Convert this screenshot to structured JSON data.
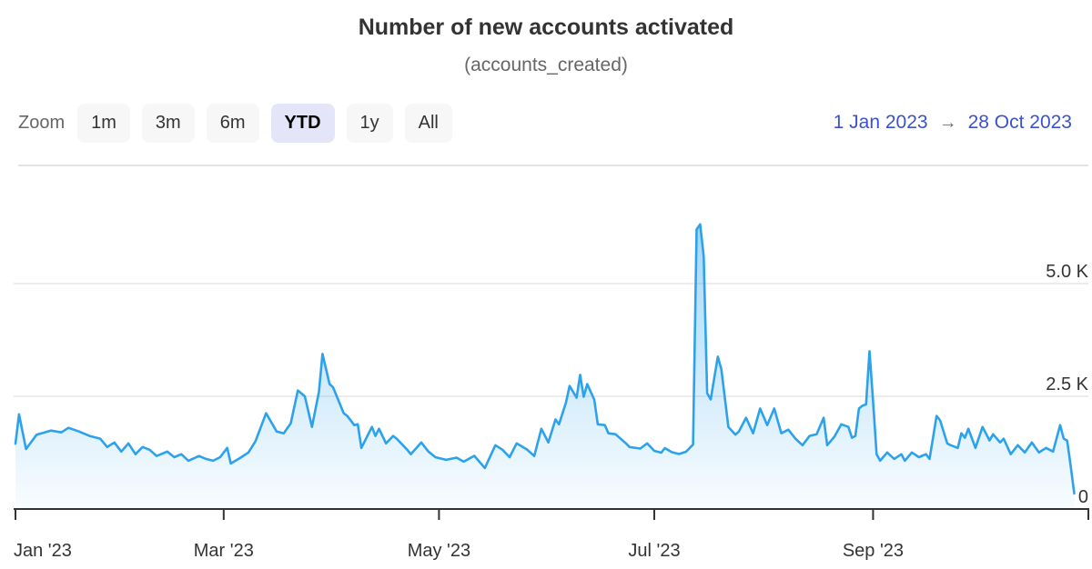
{
  "header": {
    "title": "Number of new accounts activated",
    "subtitle": "(accounts_created)"
  },
  "toolbar": {
    "zoom_label": "Zoom",
    "buttons": [
      {
        "label": "1m",
        "selected": false
      },
      {
        "label": "3m",
        "selected": false
      },
      {
        "label": "6m",
        "selected": false
      },
      {
        "label": "YTD",
        "selected": true
      },
      {
        "label": "1y",
        "selected": false
      },
      {
        "label": "All",
        "selected": false
      }
    ],
    "range": {
      "from": "1 Jan 2023",
      "arrow": "→",
      "to": "28 Oct 2023"
    }
  },
  "chart_data": {
    "type": "area",
    "title": "Number of new accounts activated",
    "subtitle": "(accounts_created)",
    "xlabel": "",
    "ylabel": "",
    "x_unit": "days since 1 Jan 2023",
    "x_range_days": [
      0,
      304
    ],
    "ylim": [
      0,
      7500
    ],
    "grid": true,
    "legend": false,
    "y_ticks": [
      {
        "value": 0,
        "label": "0"
      },
      {
        "value": 2500,
        "label": "2.5 K"
      },
      {
        "value": 5000,
        "label": "5.0 K"
      }
    ],
    "x_ticks": [
      {
        "day": 0,
        "label": "Jan '23"
      },
      {
        "day": 59,
        "label": "Mar '23"
      },
      {
        "day": 120,
        "label": "May '23"
      },
      {
        "day": 181,
        "label": "Jul '23"
      },
      {
        "day": 243,
        "label": "Sep '23"
      },
      {
        "day": 304,
        "label": ""
      }
    ],
    "colors": {
      "line": "#2da2ec",
      "fill_top": "rgba(45,162,236,0.5)",
      "fill_bottom": "rgba(45,162,236,0.03)",
      "axis": "#333333",
      "grid": "#e6e6e6",
      "tick_label": "#333333"
    },
    "series": [
      {
        "name": "accounts_created",
        "points": [
          [
            0,
            1450
          ],
          [
            1,
            2100
          ],
          [
            3,
            1330
          ],
          [
            6,
            1650
          ],
          [
            10,
            1740
          ],
          [
            13,
            1700
          ],
          [
            15,
            1800
          ],
          [
            18,
            1720
          ],
          [
            21,
            1620
          ],
          [
            24,
            1560
          ],
          [
            26,
            1375
          ],
          [
            28,
            1475
          ],
          [
            30,
            1275
          ],
          [
            32,
            1455
          ],
          [
            34,
            1215
          ],
          [
            36,
            1375
          ],
          [
            38,
            1315
          ],
          [
            40,
            1175
          ],
          [
            43,
            1275
          ],
          [
            45,
            1150
          ],
          [
            47,
            1215
          ],
          [
            49,
            1070
          ],
          [
            52,
            1175
          ],
          [
            54,
            1110
          ],
          [
            56,
            1070
          ],
          [
            58,
            1150
          ],
          [
            60,
            1355
          ],
          [
            61,
            1010
          ],
          [
            63,
            1100
          ],
          [
            64,
            1150
          ],
          [
            66,
            1255
          ],
          [
            68,
            1500
          ],
          [
            71,
            2125
          ],
          [
            74,
            1720
          ],
          [
            76,
            1680
          ],
          [
            78,
            1900
          ],
          [
            80,
            2630
          ],
          [
            82,
            2500
          ],
          [
            84,
            1820
          ],
          [
            86,
            2600
          ],
          [
            87,
            3440
          ],
          [
            89,
            2770
          ],
          [
            90,
            2700
          ],
          [
            93,
            2125
          ],
          [
            94,
            2065
          ],
          [
            96,
            1860
          ],
          [
            97,
            1880
          ],
          [
            98,
            1355
          ],
          [
            101,
            1820
          ],
          [
            102,
            1620
          ],
          [
            103,
            1780
          ],
          [
            105,
            1455
          ],
          [
            107,
            1620
          ],
          [
            108,
            1560
          ],
          [
            111,
            1315
          ],
          [
            112,
            1215
          ],
          [
            115,
            1475
          ],
          [
            117,
            1275
          ],
          [
            119,
            1150
          ],
          [
            122,
            1090
          ],
          [
            125,
            1140
          ],
          [
            127,
            1050
          ],
          [
            130,
            1180
          ],
          [
            133,
            910
          ],
          [
            136,
            1415
          ],
          [
            138,
            1315
          ],
          [
            140,
            1150
          ],
          [
            142,
            1455
          ],
          [
            145,
            1315
          ],
          [
            147,
            1175
          ],
          [
            149,
            1780
          ],
          [
            151,
            1475
          ],
          [
            153,
            1985
          ],
          [
            154,
            1880
          ],
          [
            156,
            2365
          ],
          [
            157,
            2730
          ],
          [
            159,
            2470
          ],
          [
            160,
            2975
          ],
          [
            161,
            2490
          ],
          [
            162,
            2770
          ],
          [
            164,
            2430
          ],
          [
            165,
            1880
          ],
          [
            167,
            1860
          ],
          [
            168,
            1680
          ],
          [
            170,
            1660
          ],
          [
            173,
            1455
          ],
          [
            174,
            1375
          ],
          [
            177,
            1340
          ],
          [
            179,
            1455
          ],
          [
            181,
            1290
          ],
          [
            183,
            1250
          ],
          [
            184,
            1350
          ],
          [
            186,
            1260
          ],
          [
            188,
            1220
          ],
          [
            190,
            1270
          ],
          [
            192,
            1430
          ],
          [
            193,
            6200
          ],
          [
            194,
            6315
          ],
          [
            195,
            5600
          ],
          [
            196,
            2570
          ],
          [
            197,
            2430
          ],
          [
            199,
            3380
          ],
          [
            200,
            3100
          ],
          [
            202,
            1820
          ],
          [
            204,
            1650
          ],
          [
            205,
            1720
          ],
          [
            207,
            2025
          ],
          [
            209,
            1680
          ],
          [
            211,
            2230
          ],
          [
            213,
            1860
          ],
          [
            215,
            2230
          ],
          [
            217,
            1680
          ],
          [
            219,
            1760
          ],
          [
            221,
            1560
          ],
          [
            223,
            1415
          ],
          [
            225,
            1620
          ],
          [
            227,
            1660
          ],
          [
            229,
            2025
          ],
          [
            230,
            1415
          ],
          [
            232,
            1600
          ],
          [
            234,
            1880
          ],
          [
            236,
            1820
          ],
          [
            237,
            1580
          ],
          [
            238,
            1620
          ],
          [
            239,
            2230
          ],
          [
            240,
            2290
          ],
          [
            241,
            2320
          ],
          [
            242,
            3500
          ],
          [
            243,
            2400
          ],
          [
            244,
            1215
          ],
          [
            245,
            1070
          ],
          [
            247,
            1255
          ],
          [
            249,
            1110
          ],
          [
            251,
            1215
          ],
          [
            252,
            1070
          ],
          [
            254,
            1255
          ],
          [
            256,
            1150
          ],
          [
            258,
            1215
          ],
          [
            259,
            1110
          ],
          [
            261,
            2065
          ],
          [
            262,
            1965
          ],
          [
            264,
            1455
          ],
          [
            265,
            1415
          ],
          [
            267,
            1355
          ],
          [
            268,
            1680
          ],
          [
            269,
            1580
          ],
          [
            270,
            1780
          ],
          [
            272,
            1355
          ],
          [
            274,
            1820
          ],
          [
            276,
            1520
          ],
          [
            277,
            1660
          ],
          [
            279,
            1475
          ],
          [
            280,
            1560
          ],
          [
            282,
            1215
          ],
          [
            284,
            1415
          ],
          [
            286,
            1255
          ],
          [
            288,
            1475
          ],
          [
            290,
            1255
          ],
          [
            292,
            1355
          ],
          [
            294,
            1275
          ],
          [
            296,
            1860
          ],
          [
            297,
            1560
          ],
          [
            298,
            1520
          ],
          [
            299,
            950
          ],
          [
            300,
            345
          ]
        ]
      }
    ]
  }
}
